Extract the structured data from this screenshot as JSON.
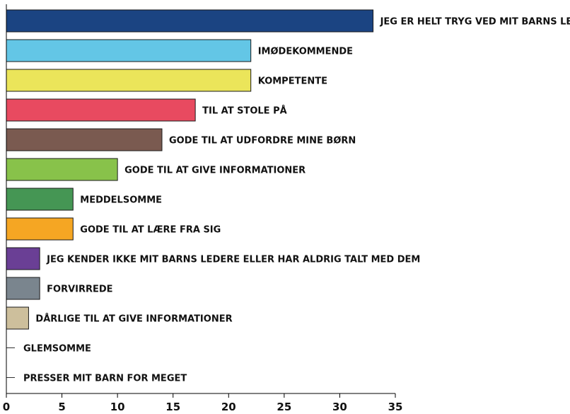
{
  "chart_data": {
    "type": "bar",
    "orientation": "horizontal",
    "title": "",
    "xlabel": "",
    "ylabel": "",
    "xlim": [
      0,
      35
    ],
    "xticks": [
      0,
      5,
      10,
      15,
      20,
      25,
      30,
      35
    ],
    "grid": false,
    "legend": "none",
    "labels_position": "right of bar",
    "categories": [
      "JEG ER HELT TRYG VED MIT BARNS LEDERE",
      "IMØDEKOMMENDE",
      "KOMPETENTE",
      "TIL AT STOLE PÅ",
      "GODE TIL AT UDFORDRE MINE BØRN",
      "GODE TIL AT GIVE INFORMATIONER",
      "MEDDELSOMME",
      "GODE TIL AT LÆRE FRA SIG",
      "JEG KENDER IKKE MIT BARNS LEDERE ELLER HAR ALDRIG TALT MED DEM",
      "FORVIRREDE",
      "DÅRLIGE TIL AT GIVE INFORMATIONER",
      "GLEMSOMME",
      "PRESSER MIT BARN FOR MEGET"
    ],
    "values": [
      33,
      22,
      22,
      17,
      14,
      10,
      6,
      6,
      3,
      3,
      2,
      0,
      0
    ],
    "colors": [
      "#1b4482",
      "#63c6e6",
      "#ebe55a",
      "#e84a60",
      "#7a5a50",
      "#88c24a",
      "#459654",
      "#f5a623",
      "#6a3f95",
      "#7a858e",
      "#cdbf9c",
      "#ffffff",
      "#ffffff"
    ]
  }
}
